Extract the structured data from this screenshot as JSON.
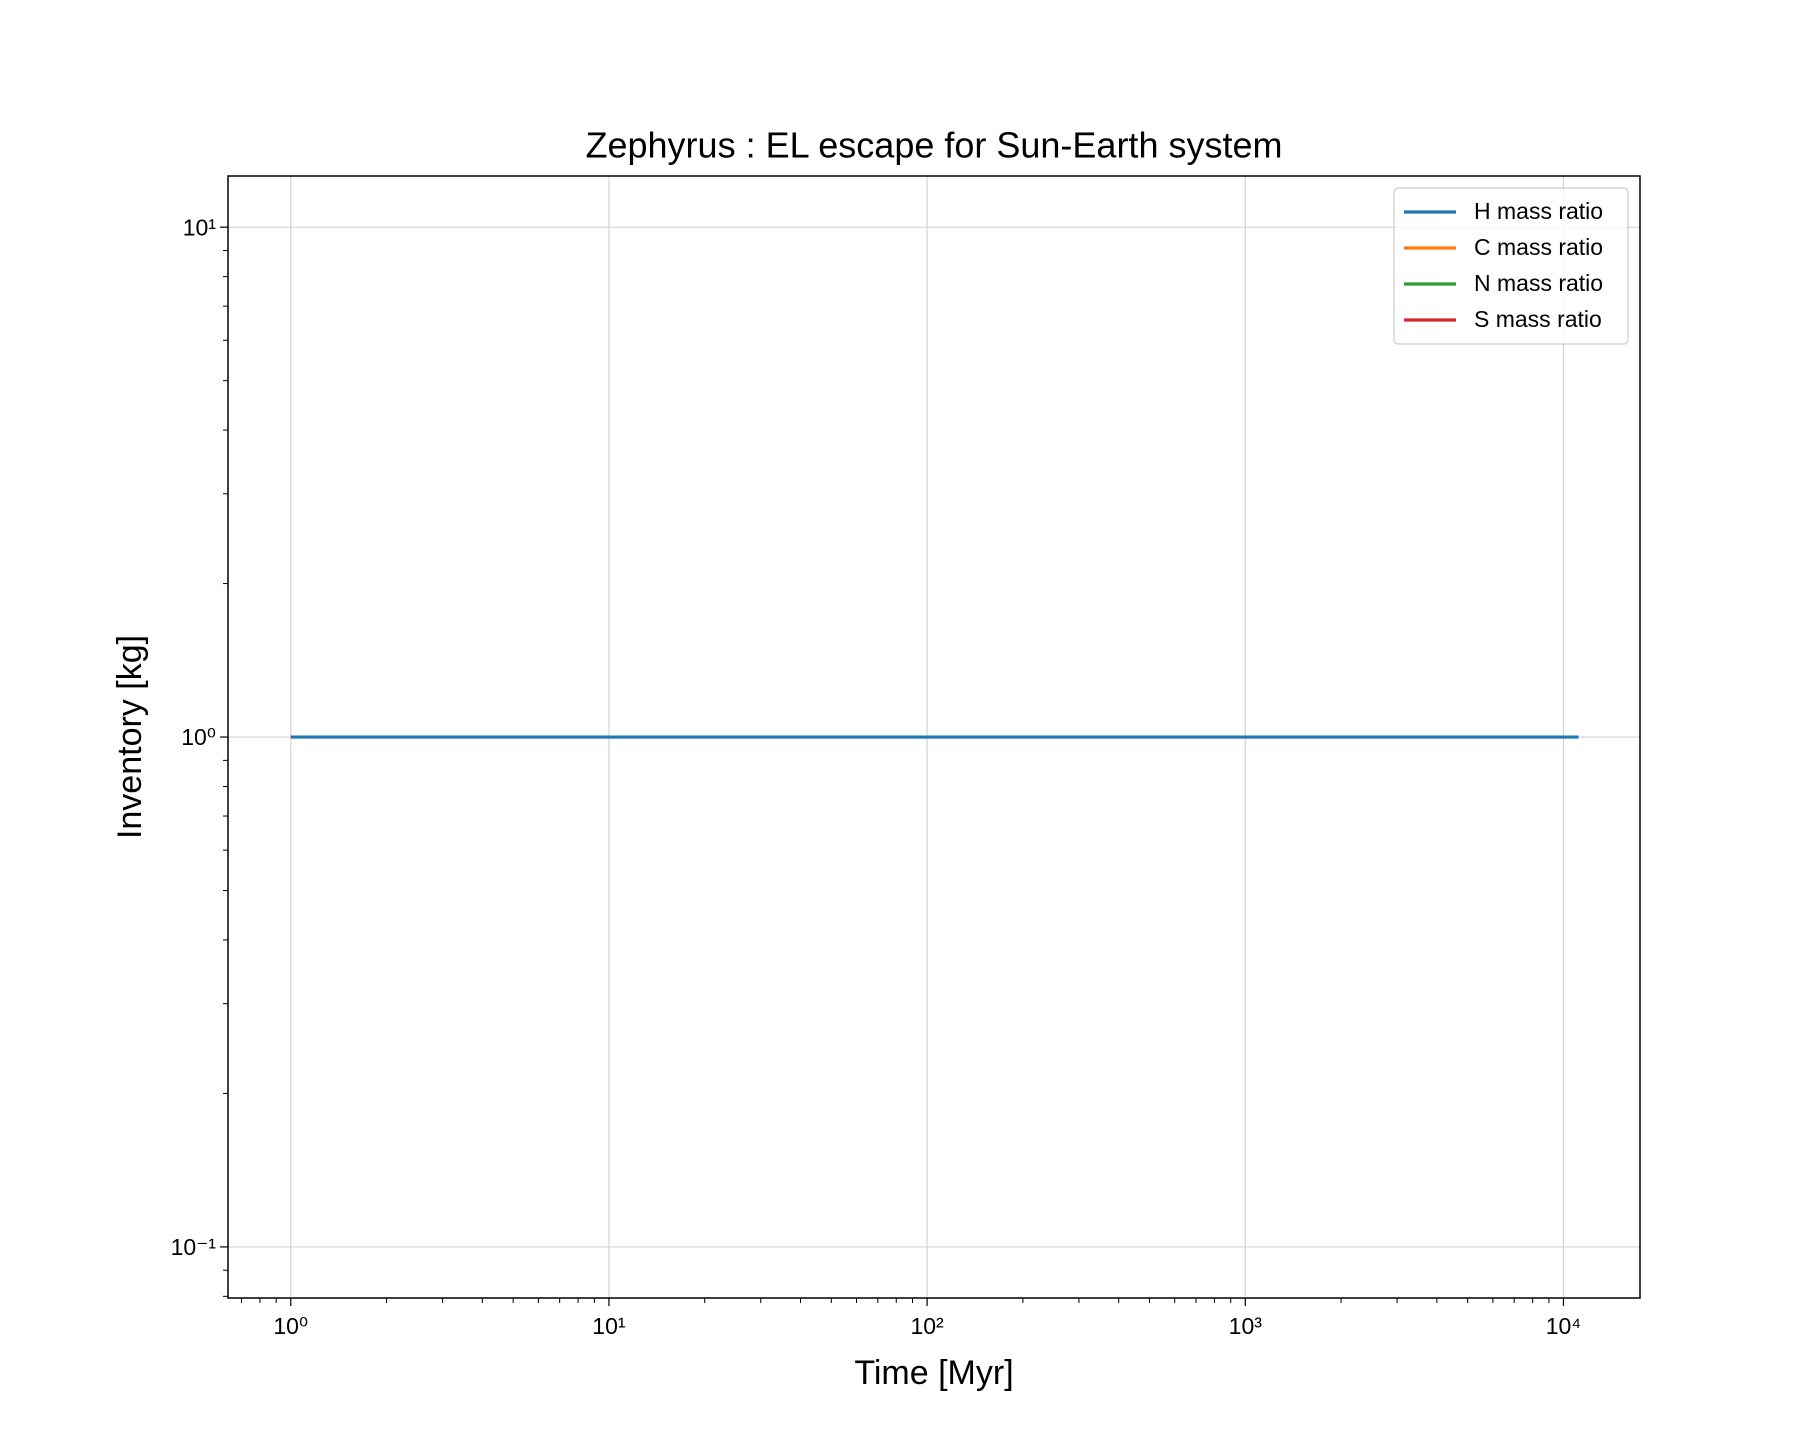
{
  "chart_data": {
    "type": "line",
    "title": "Zephyrus : EL escape for Sun-Earth system",
    "x_label": "Time [Myr]",
    "y_label": "Inventory [kg]",
    "x": [
      1,
      11150
    ],
    "series": [
      {
        "name": "H mass ratio",
        "color": "#1f77b4",
        "values": [
          1,
          1
        ]
      },
      {
        "name": "C mass ratio",
        "color": "#ff7f0e",
        "values": [
          null,
          null
        ]
      },
      {
        "name": "N mass ratio",
        "color": "#2ca02c",
        "values": [
          null,
          null
        ]
      },
      {
        "name": "S mass ratio",
        "color": "#d62728",
        "values": [
          null,
          null
        ]
      }
    ],
    "xscale": "log",
    "yscale": "log",
    "xlim": [
      0.635,
      17400
    ],
    "ylim": [
      0.0794,
      12.6
    ],
    "xticks": [
      {
        "value": 1,
        "label": "10⁰"
      },
      {
        "value": 10,
        "label": "10¹"
      },
      {
        "value": 100,
        "label": "10²"
      },
      {
        "value": 1000,
        "label": "10³"
      },
      {
        "value": 10000,
        "label": "10⁴"
      }
    ],
    "yticks": [
      {
        "value": 0.1,
        "label": "10⁻¹"
      },
      {
        "value": 1,
        "label": "10⁰"
      },
      {
        "value": 10,
        "label": "10¹"
      }
    ],
    "xminorticks": [
      0.7,
      0.8,
      0.9,
      2,
      3,
      4,
      5,
      6,
      7,
      8,
      9,
      20,
      30,
      40,
      50,
      60,
      70,
      80,
      90,
      200,
      300,
      400,
      500,
      600,
      700,
      800,
      900,
      2000,
      3000,
      4000,
      5000,
      6000,
      7000,
      8000,
      9000
    ],
    "yminorticks": [
      0.08,
      0.09,
      0.2,
      0.3,
      0.4,
      0.5,
      0.6,
      0.7,
      0.8,
      0.9,
      2,
      3,
      4,
      5,
      6,
      7,
      8,
      9
    ],
    "grid": true,
    "legend": "upper right"
  }
}
